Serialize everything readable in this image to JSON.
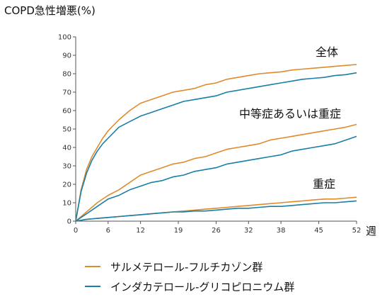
{
  "chart_data": {
    "type": "line",
    "title": "COPD急性増悪(%)",
    "xunit": "週",
    "xlim": [
      0,
      52
    ],
    "ylim": [
      0,
      100
    ],
    "xticks": [
      0,
      6,
      12,
      19,
      26,
      32,
      38,
      45,
      52
    ],
    "yticks": [
      0,
      10,
      20,
      30,
      40,
      50,
      60,
      70,
      80,
      90,
      100
    ],
    "grid": false,
    "legend_position": "bottom",
    "groups": [
      {
        "label": "全体",
        "series": [
          {
            "name": "サルメテロール-フルチカゾン群",
            "color": "#e08a2c",
            "x": [
              0,
              1,
              2,
              3,
              4,
              5,
              6,
              8,
              10,
              12,
              14,
              16,
              18,
              20,
              22,
              24,
              26,
              28,
              30,
              32,
              34,
              36,
              38,
              40,
              42,
              44,
              46,
              48,
              50,
              52
            ],
            "y": [
              0,
              17,
              28,
              35,
              40,
              45,
              49,
              55,
              60,
              64,
              66,
              68,
              70,
              71,
              72,
              74,
              75,
              77,
              78,
              79,
              80,
              80.5,
              81,
              82,
              82.5,
              83,
              83.5,
              84,
              84.5,
              85
            ]
          },
          {
            "name": "インダカテロール-グリコピロニウム群",
            "color": "#1a7fa8",
            "x": [
              0,
              1,
              2,
              3,
              4,
              5,
              6,
              8,
              10,
              12,
              14,
              16,
              18,
              20,
              22,
              24,
              26,
              28,
              30,
              32,
              34,
              36,
              38,
              40,
              42,
              44,
              46,
              48,
              50,
              52
            ],
            "y": [
              0,
              16,
              26,
              33,
              38,
              42,
              45,
              51,
              54,
              57,
              59,
              61,
              63,
              65,
              66,
              67,
              68,
              70,
              71,
              72,
              73,
              74,
              75,
              76,
              77,
              77.5,
              78,
              79,
              79.5,
              80.5
            ]
          }
        ]
      },
      {
        "label": "中等症あるいは重症",
        "series": [
          {
            "name": "サルメテロール-フルチカゾン群",
            "color": "#e08a2c",
            "x": [
              0,
              2,
              4,
              6,
              8,
              10,
              12,
              14,
              16,
              18,
              20,
              22,
              24,
              26,
              28,
              30,
              32,
              34,
              36,
              38,
              40,
              42,
              44,
              46,
              48,
              50,
              52
            ],
            "y": [
              0,
              5,
              10,
              14,
              17,
              21,
              25,
              27,
              29,
              31,
              32,
              34,
              35,
              37,
              39,
              40,
              41,
              42,
              44,
              45,
              46,
              47,
              48,
              49,
              50,
              51,
              52.5
            ]
          },
          {
            "name": "インダカテロール-グリコピロニウム群",
            "color": "#1a7fa8",
            "x": [
              0,
              2,
              4,
              6,
              8,
              10,
              12,
              14,
              16,
              18,
              20,
              22,
              24,
              26,
              28,
              30,
              32,
              34,
              36,
              38,
              40,
              42,
              44,
              46,
              48,
              50,
              52
            ],
            "y": [
              0,
              4,
              8,
              12,
              14,
              17,
              19,
              21,
              22,
              24,
              25,
              27,
              28,
              29,
              31,
              32,
              33,
              34,
              35,
              36,
              38,
              39,
              40,
              41,
              42,
              44,
              46
            ]
          }
        ]
      },
      {
        "label": "重症",
        "series": [
          {
            "name": "サルメテロール-フルチカゾン群",
            "color": "#e08a2c",
            "x": [
              0,
              2,
              4,
              6,
              8,
              10,
              12,
              14,
              16,
              18,
              20,
              22,
              24,
              26,
              28,
              30,
              32,
              34,
              36,
              38,
              40,
              42,
              44,
              46,
              48,
              50,
              52
            ],
            "y": [
              0,
              1,
              1.5,
              2,
              2.5,
              3,
              3.5,
              4,
              4.5,
              5,
              5.5,
              6,
              6.5,
              7,
              7.5,
              8,
              8.5,
              9,
              9.5,
              10,
              10.5,
              11,
              11.5,
              12,
              12,
              12.5,
              13
            ]
          },
          {
            "name": "インダカテロール-グリコピロニウム群",
            "color": "#1a7fa8",
            "x": [
              0,
              2,
              4,
              6,
              8,
              10,
              12,
              14,
              16,
              18,
              20,
              22,
              24,
              26,
              28,
              30,
              32,
              34,
              36,
              38,
              40,
              42,
              44,
              46,
              48,
              50,
              52
            ],
            "y": [
              0,
              1,
              1.5,
              2,
              2.5,
              3,
              3.5,
              4,
              4.5,
              5,
              5,
              5.5,
              5.5,
              6,
              6.5,
              7,
              7,
              7.5,
              8,
              8,
              8.5,
              9,
              9.5,
              10,
              10,
              10.5,
              11
            ]
          }
        ]
      }
    ],
    "legend": [
      {
        "label": "サルメテロール-フルチカゾン群",
        "color": "#e08a2c"
      },
      {
        "label": "インダカテロール-グリコピロニウム群",
        "color": "#1a7fa8"
      }
    ]
  }
}
